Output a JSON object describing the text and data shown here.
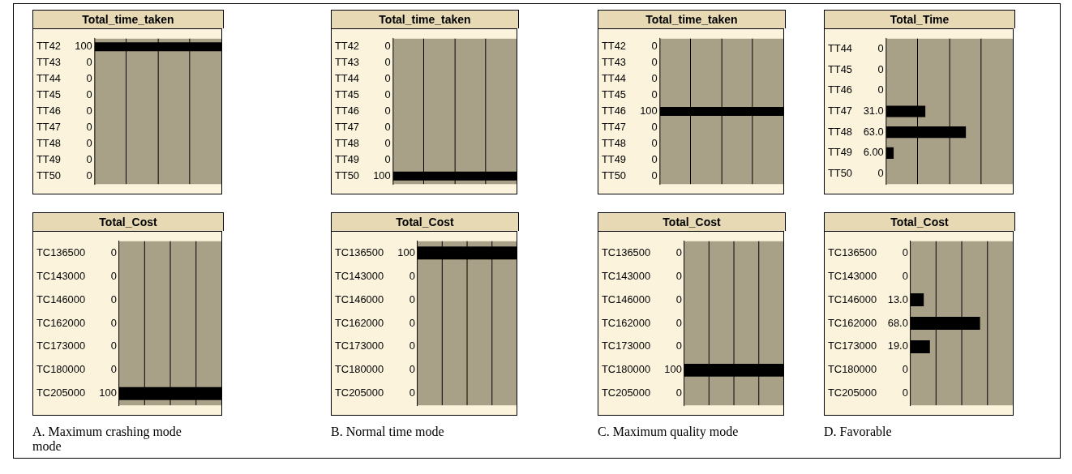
{
  "chart_data": [
    {
      "type": "bar",
      "orientation": "horizontal",
      "title": "Total_time_taken",
      "categories": [
        "TT42",
        "TT43",
        "TT44",
        "TT45",
        "TT46",
        "TT47",
        "TT48",
        "TT49",
        "TT50"
      ],
      "values": [
        100,
        0,
        0,
        0,
        0,
        0,
        0,
        0,
        0
      ],
      "color": "#000000",
      "xlim": [
        0,
        100
      ],
      "xticks": [
        {
          "value": 25,
          "label": null
        },
        {
          "value": 50,
          "label": null
        },
        {
          "value": 75,
          "label": null
        }
      ],
      "grid": "x",
      "tick_labels": "y",
      "data_labels": true
    },
    {
      "type": "bar",
      "orientation": "horizontal",
      "title": "Total_time_taken",
      "categories": [
        "TT42",
        "TT43",
        "TT44",
        "TT45",
        "TT46",
        "TT47",
        "TT48",
        "TT49",
        "TT50"
      ],
      "values": [
        0,
        0,
        0,
        0,
        0,
        0,
        0,
        0,
        100
      ],
      "color": "#000000",
      "xlim": [
        0,
        100
      ],
      "xticks": [
        {
          "value": 25,
          "label": null
        },
        {
          "value": 50,
          "label": null
        },
        {
          "value": 75,
          "label": null
        }
      ],
      "grid": "x",
      "tick_labels": "y",
      "data_labels": true
    },
    {
      "type": "bar",
      "orientation": "horizontal",
      "title": "Total_time_taken",
      "categories": [
        "TT42",
        "TT43",
        "TT44",
        "TT45",
        "TT46",
        "TT47",
        "TT48",
        "TT49",
        "TT50"
      ],
      "values": [
        0,
        0,
        0,
        0,
        100,
        0,
        0,
        0,
        0
      ],
      "color": "#000000",
      "xlim": [
        0,
        100
      ],
      "xticks": [
        {
          "value": 25,
          "label": null
        },
        {
          "value": 50,
          "label": null
        },
        {
          "value": 75,
          "label": null
        }
      ],
      "grid": "x",
      "tick_labels": "y",
      "data_labels": true
    },
    {
      "type": "bar",
      "orientation": "horizontal",
      "title": "Total_Time",
      "categories": [
        "TT44",
        "TT45",
        "TT46",
        "TT47",
        "TT48",
        "TT49",
        "TT50"
      ],
      "values": [
        0,
        0,
        0,
        31,
        63,
        6,
        0
      ],
      "value_labels": [
        "0",
        "0",
        "0",
        "31.0",
        "63.0",
        "6.00",
        "0"
      ],
      "color": "#000000",
      "xlim": [
        0,
        100
      ],
      "xticks": [
        {
          "value": 25,
          "label": null
        },
        {
          "value": 50,
          "label": null
        },
        {
          "value": 75,
          "label": null
        }
      ],
      "grid": "x",
      "tick_labels": "y"
    },
    {
      "type": "bar",
      "orientation": "horizontal",
      "title": "Total_Cost",
      "categories": [
        "TC136500",
        "TC143000",
        "TC146000",
        "TC162000",
        "TC173000",
        "TC180000",
        "TC205000"
      ],
      "values": [
        0,
        0,
        0,
        0,
        0,
        0,
        100
      ],
      "color": "#000000",
      "xlim": [
        0,
        100
      ],
      "xticks": [
        {
          "value": 25,
          "label": null
        },
        {
          "value": 50,
          "label": null
        },
        {
          "value": 75,
          "label": null
        }
      ],
      "grid": "x",
      "tick_labels": "y",
      "data_labels": true,
      "annotations": [
        "A. Maximum crashing mode mode"
      ]
    },
    {
      "type": "bar",
      "orientation": "horizontal",
      "title": "Total_Cost",
      "categories": [
        "TC136500",
        "TC143000",
        "TC146000",
        "TC162000",
        "TC173000",
        "TC180000",
        "TC205000"
      ],
      "values": [
        100,
        0,
        0,
        0,
        0,
        0,
        0
      ],
      "color": "#000000",
      "xlim": [
        0,
        100
      ],
      "xticks": [
        {
          "value": 25,
          "label": null
        },
        {
          "value": 50,
          "label": null
        },
        {
          "value": 75,
          "label": null
        }
      ],
      "grid": "x",
      "tick_labels": "y",
      "data_labels": true,
      "annotations": [
        "B. Normal time mode"
      ]
    },
    {
      "type": "bar",
      "orientation": "horizontal",
      "title": "Total_Cost",
      "categories": [
        "TC136500",
        "TC143000",
        "TC146000",
        "TC162000",
        "TC173000",
        "TC180000",
        "TC205000"
      ],
      "values": [
        0,
        0,
        0,
        0,
        0,
        100,
        0
      ],
      "color": "#000000",
      "xlim": [
        0,
        100
      ],
      "xticks": [
        {
          "value": 25,
          "label": null
        },
        {
          "value": 50,
          "label": null
        },
        {
          "value": 75,
          "label": null
        }
      ],
      "grid": "x",
      "tick_labels": "y",
      "data_labels": true,
      "annotations": [
        "C. Maximum quality mode"
      ]
    },
    {
      "type": "bar",
      "orientation": "horizontal",
      "title": "Total_Cost",
      "categories": [
        "TC136500",
        "TC143000",
        "TC146000",
        "TC162000",
        "TC173000",
        "TC180000",
        "TC205000"
      ],
      "values": [
        0,
        0,
        13,
        68,
        19,
        0,
        0
      ],
      "value_labels": [
        "0",
        "0",
        "13.0",
        "68.0",
        "19.0",
        "0",
        "0"
      ],
      "color": "#000000",
      "xlim": [
        0,
        100
      ],
      "xticks": [
        {
          "value": 25,
          "label": null
        },
        {
          "value": 50,
          "label": null
        },
        {
          "value": 75,
          "label": null
        }
      ],
      "grid": "x",
      "tick_labels": "y",
      "annotations": [
        "D. Favorable"
      ]
    }
  ]
}
